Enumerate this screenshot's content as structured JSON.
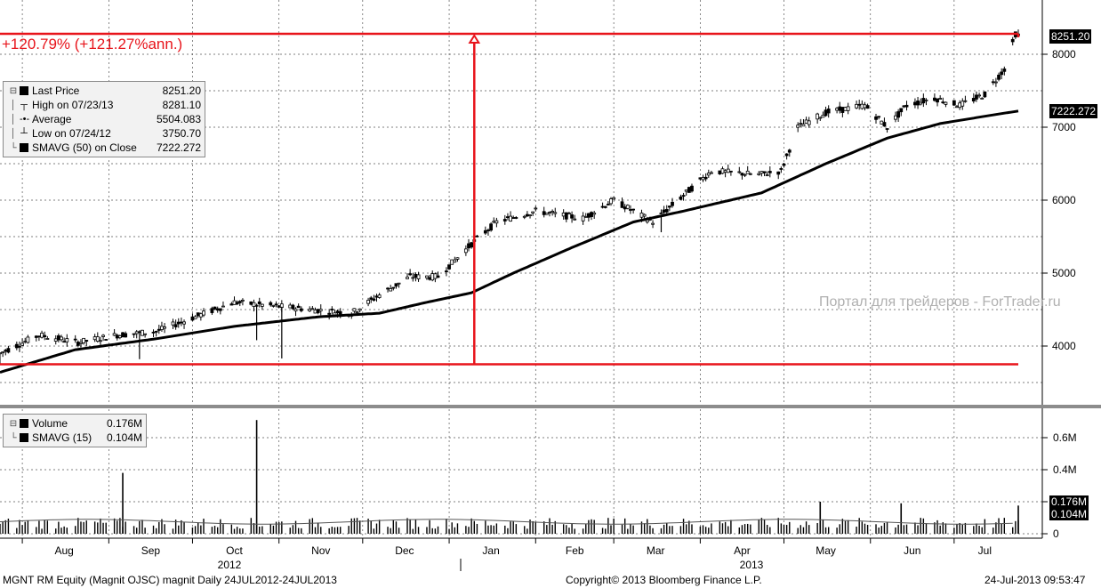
{
  "chart_data": [
    {
      "type": "candlestick",
      "x_range": [
        "2012-07-24",
        "2013-07-24"
      ],
      "ylim": [
        3500,
        8400
      ],
      "y_ticks": [
        4000,
        5000,
        6000,
        7000,
        8000
      ],
      "x_month_labels": [
        "Aug",
        "Sep",
        "Oct",
        "Nov",
        "Dec",
        "Jan",
        "Feb",
        "Mar",
        "Apr",
        "May",
        "Jun",
        "Jul"
      ],
      "x_year_labels": [
        "2012",
        "2013"
      ],
      "grid": true,
      "legend_position": "top-left",
      "price_anchors": [
        [
          "2012-07-24",
          3900
        ],
        [
          "2012-08-07",
          4150
        ],
        [
          "2012-08-21",
          4050
        ],
        [
          "2012-09-04",
          4150
        ],
        [
          "2012-09-18",
          4200
        ],
        [
          "2012-10-02",
          4400
        ],
        [
          "2012-10-16",
          4600
        ],
        [
          "2012-10-30",
          4550
        ],
        [
          "2012-11-13",
          4500
        ],
        [
          "2012-11-27",
          4450
        ],
        [
          "2012-12-07",
          4700
        ],
        [
          "2012-12-18",
          4950
        ],
        [
          "2012-12-28",
          4950
        ],
        [
          "2013-01-09",
          5400
        ],
        [
          "2013-01-18",
          5700
        ],
        [
          "2013-02-01",
          5850
        ],
        [
          "2013-02-18",
          5750
        ],
        [
          "2013-03-01",
          6000
        ],
        [
          "2013-03-15",
          5700
        ],
        [
          "2013-03-27",
          6100
        ],
        [
          "2013-04-05",
          6400
        ],
        [
          "2013-04-22",
          6350
        ],
        [
          "2013-04-30",
          6400
        ],
        [
          "2013-05-06",
          7000
        ],
        [
          "2013-05-16",
          7200
        ],
        [
          "2013-05-30",
          7300
        ],
        [
          "2013-06-07",
          7000
        ],
        [
          "2013-06-14",
          7300
        ],
        [
          "2013-06-24",
          7400
        ],
        [
          "2013-07-03",
          7300
        ],
        [
          "2013-07-12",
          7450
        ],
        [
          "2013-07-19",
          7800
        ],
        [
          "2013-07-23",
          8281.1
        ],
        [
          "2013-07-24",
          8251.2
        ]
      ],
      "sma50_anchors": [
        [
          "2012-07-24",
          3640
        ],
        [
          "2012-08-20",
          3950
        ],
        [
          "2012-09-18",
          4100
        ],
        [
          "2012-10-16",
          4270
        ],
        [
          "2012-11-15",
          4400
        ],
        [
          "2012-12-07",
          4450
        ],
        [
          "2012-12-24",
          4600
        ],
        [
          "2013-01-09",
          4730
        ],
        [
          "2013-01-24",
          5000
        ],
        [
          "2013-02-14",
          5350
        ],
        [
          "2013-03-08",
          5700
        ],
        [
          "2013-03-26",
          5850
        ],
        [
          "2013-04-23",
          6100
        ],
        [
          "2013-05-16",
          6500
        ],
        [
          "2013-06-07",
          6850
        ],
        [
          "2013-06-26",
          7050
        ],
        [
          "2013-07-12",
          7150
        ],
        [
          "2013-07-24",
          7222.272
        ]
      ],
      "series": [
        {
          "name": "Last Price",
          "value": "8251.20"
        },
        {
          "name": "High on 07/23/13",
          "value": "8281.10"
        },
        {
          "name": "Average",
          "value": "5504.083"
        },
        {
          "name": "Low on 07/24/12",
          "value": "3750.70"
        },
        {
          "name": "SMAVG (50) on Close",
          "value": "7222.272"
        }
      ],
      "annotations": {
        "gain_text": "+120.79% (+121.27%ann.)",
        "low_level": 3750.7,
        "high_level": 8281.1,
        "arrow_date": "2013-01-10",
        "last_price_badge": "8251.20",
        "sma_badge": "7222.272"
      }
    },
    {
      "type": "bar",
      "x_range": [
        "2012-07-24",
        "2013-07-24"
      ],
      "ylim": [
        0,
        0.72
      ],
      "y_ticks": [
        0,
        0.2,
        0.4,
        0.6
      ],
      "y_tick_labels": [
        "0",
        "",
        "0.4M",
        "0.6M"
      ],
      "units": "M",
      "volume_spikes": [
        [
          "2012-09-06",
          0.38
        ],
        [
          "2012-10-24",
          0.71
        ],
        [
          "2013-05-14",
          0.2
        ],
        [
          "2013-06-12",
          0.19
        ],
        [
          "2013-07-24",
          0.176
        ]
      ],
      "series": [
        {
          "name": "Volume",
          "value": "0.176M"
        },
        {
          "name": "SMAVG (15)",
          "value": "0.104M"
        }
      ],
      "badges": {
        "volume": "0.176M",
        "sma": "0.104M"
      }
    }
  ],
  "legend": {
    "price_rows": [
      {
        "name": "Last Price",
        "value": "8251.20",
        "symbol": "square"
      },
      {
        "name": "High on 07/23/13",
        "value": "8281.10",
        "symbol": "high"
      },
      {
        "name": "Average",
        "value": "5504.083",
        "symbol": "avg"
      },
      {
        "name": "Low on 07/24/12",
        "value": "3750.70",
        "symbol": "low"
      },
      {
        "name": "SMAVG (50) on Close",
        "value": "7222.272",
        "symbol": "square"
      }
    ],
    "volume_rows": [
      {
        "name": "Volume",
        "value": "0.176M"
      },
      {
        "name": "SMAVG (15)",
        "value": "0.104M"
      }
    ]
  },
  "footer": {
    "left": "MGNT RM Equity (Magnit OJSC) magnit  Daily 24JUL2012-24JUL2013",
    "center": "Copyright© 2013 Bloomberg Finance L.P.",
    "right": "24-Jul-2013 09:53:47"
  },
  "watermark": "Портал для трейдеров - ForTrader.ru",
  "colors": {
    "price": "#000000",
    "annotation": "#e8141b",
    "grid": "#555555",
    "divider": "#8c8c8c",
    "legend_bg": "#f2f2f2"
  }
}
